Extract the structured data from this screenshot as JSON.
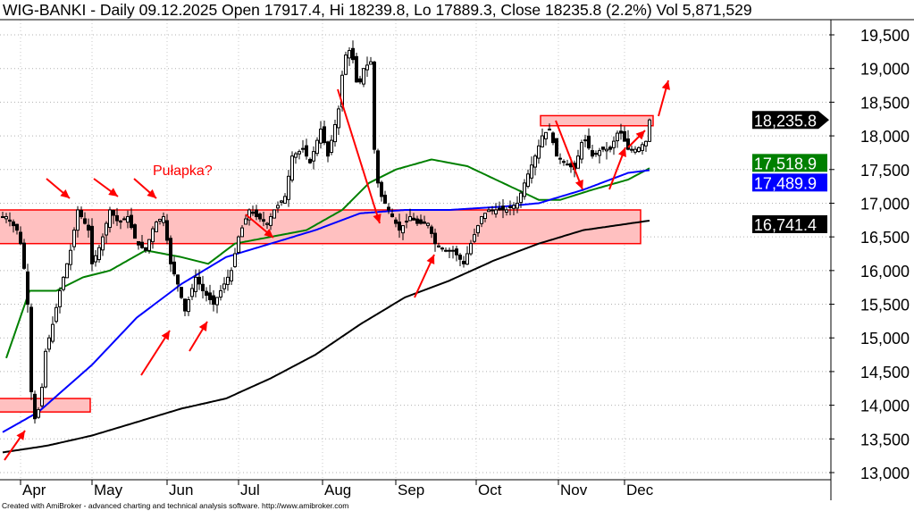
{
  "header": {
    "title": "WIG-BANKI - Daily 09.12.2025 Open 17917.4, Hi 18239.8, Lo 17889.3, Close 18235.8 (2.2%) Vol 5,871,529"
  },
  "footer": {
    "text": "Created with AmiBroker - advanced charting and technical analysis software. http://www.amibroker.com"
  },
  "chart_data": {
    "type": "candlestick",
    "title": "WIG-BANKI - Daily",
    "ylim": [
      12800,
      19800
    ],
    "y_ticks": [
      13000,
      13500,
      14000,
      14500,
      15000,
      15500,
      16000,
      16500,
      17000,
      17500,
      18000,
      18500,
      19000,
      19500
    ],
    "y_tick_labels": [
      "13,000",
      "13,500",
      "14,000",
      "14,500",
      "15,000",
      "15,500",
      "16,000",
      "16,500",
      "17,000",
      "17,500",
      "18,000",
      "18,500",
      "19,000",
      "19,500"
    ],
    "x_months": [
      {
        "label": "Apr",
        "day": 5
      },
      {
        "label": "May",
        "day": 25
      },
      {
        "label": "Jun",
        "day": 46
      },
      {
        "label": "Jul",
        "day": 66
      },
      {
        "label": "Aug",
        "day": 89.5
      },
      {
        "label": "Sep",
        "day": 110
      },
      {
        "label": "Oct",
        "day": 132.5
      },
      {
        "label": "Nov",
        "day": 155.5
      },
      {
        "label": "Dec",
        "day": 174
      }
    ],
    "price_anchors": [
      [
        0,
        16800
      ],
      [
        1,
        16800
      ],
      [
        4,
        16600
      ],
      [
        5.5,
        16300
      ],
      [
        7,
        15500
      ],
      [
        8,
        14200
      ],
      [
        9,
        13800
      ],
      [
        10.5,
        14000
      ],
      [
        12,
        14800
      ],
      [
        14,
        15200
      ],
      [
        16,
        15700
      ],
      [
        19,
        16300
      ],
      [
        21,
        16900
      ],
      [
        24,
        16600
      ],
      [
        25,
        16100
      ],
      [
        27.5,
        16400
      ],
      [
        30,
        16900
      ],
      [
        32.5,
        16700
      ],
      [
        35,
        16800
      ],
      [
        37.5,
        16400
      ],
      [
        40,
        16300
      ],
      [
        42.5,
        16700
      ],
      [
        45,
        16800
      ],
      [
        47,
        16100
      ],
      [
        49,
        15800
      ],
      [
        51,
        15400
      ],
      [
        54,
        15900
      ],
      [
        56,
        15700
      ],
      [
        59,
        15500
      ],
      [
        61,
        15700
      ],
      [
        64,
        16000
      ],
      [
        66,
        16500
      ],
      [
        69,
        16900
      ],
      [
        71,
        16800
      ],
      [
        74,
        16700
      ],
      [
        76,
        16900
      ],
      [
        79,
        17100
      ],
      [
        81,
        17700
      ],
      [
        84,
        17800
      ],
      [
        86,
        17600
      ],
      [
        89,
        18100
      ],
      [
        91,
        17700
      ],
      [
        94,
        18400
      ],
      [
        95,
        18900
      ],
      [
        96,
        19200
      ],
      [
        97.5,
        19300
      ],
      [
        99,
        18800
      ],
      [
        100,
        18800
      ],
      [
        101,
        19000
      ],
      [
        103,
        19100
      ],
      [
        104,
        17800
      ],
      [
        105,
        17300
      ],
      [
        106,
        17100
      ],
      [
        109,
        16800
      ],
      [
        111,
        16600
      ],
      [
        114,
        16800
      ],
      [
        116,
        16700
      ],
      [
        119,
        16700
      ],
      [
        121,
        16400
      ],
      [
        124,
        16300
      ],
      [
        126,
        16300
      ],
      [
        129,
        16100
      ],
      [
        131,
        16400
      ],
      [
        134,
        16800
      ],
      [
        136,
        16900
      ],
      [
        139,
        16900
      ],
      [
        141,
        16900
      ],
      [
        144,
        17000
      ],
      [
        146,
        17300
      ],
      [
        149,
        17700
      ],
      [
        151,
        18000
      ],
      [
        153,
        18100
      ],
      [
        155,
        17700
      ],
      [
        157.5,
        17600
      ],
      [
        160,
        17500
      ],
      [
        162.5,
        18000
      ],
      [
        165,
        17700
      ],
      [
        167.5,
        17800
      ],
      [
        170,
        17800
      ],
      [
        172.5,
        18100
      ],
      [
        175,
        17800
      ],
      [
        177.5,
        17800
      ],
      [
        180,
        17917.4
      ],
      [
        181,
        18235.8
      ]
    ],
    "series": [
      {
        "name": "MA green",
        "color": "#008000",
        "last": "17,518.9",
        "points": [
          [
            1,
            14700
          ],
          [
            7.5,
            15700
          ],
          [
            15,
            15700
          ],
          [
            22.5,
            15900
          ],
          [
            30,
            16000
          ],
          [
            40,
            16300
          ],
          [
            50,
            16200
          ],
          [
            57.5,
            16100
          ],
          [
            65,
            16400
          ],
          [
            75,
            16500
          ],
          [
            85,
            16600
          ],
          [
            95,
            16900
          ],
          [
            102.5,
            17300
          ],
          [
            110,
            17500
          ],
          [
            120,
            17650
          ],
          [
            130,
            17550
          ],
          [
            140,
            17300
          ],
          [
            150,
            17050
          ],
          [
            156,
            17050
          ],
          [
            165,
            17200
          ],
          [
            175,
            17350
          ],
          [
            181,
            17518.9
          ]
        ]
      },
      {
        "name": "MA blue",
        "color": "#0000ff",
        "last": "17,489.9",
        "points": [
          [
            0,
            13600
          ],
          [
            10,
            13900
          ],
          [
            25,
            14600
          ],
          [
            37.5,
            15300
          ],
          [
            50,
            15800
          ],
          [
            62.5,
            16200
          ],
          [
            75,
            16400
          ],
          [
            87.5,
            16600
          ],
          [
            100,
            16850
          ],
          [
            112.5,
            16900
          ],
          [
            125,
            16900
          ],
          [
            140,
            16950
          ],
          [
            150,
            17000
          ],
          [
            162.5,
            17200
          ],
          [
            175,
            17450
          ],
          [
            181,
            17489.9
          ]
        ]
      },
      {
        "name": "MA black",
        "color": "#000000",
        "last": "16,741.4",
        "points": [
          [
            0,
            13300
          ],
          [
            12.5,
            13400
          ],
          [
            25,
            13550
          ],
          [
            37.5,
            13750
          ],
          [
            50,
            13950
          ],
          [
            62.5,
            14100
          ],
          [
            75,
            14400
          ],
          [
            87.5,
            14750
          ],
          [
            100,
            15200
          ],
          [
            112.5,
            15600
          ],
          [
            125,
            15850
          ],
          [
            137.5,
            16150
          ],
          [
            150,
            16400
          ],
          [
            162.5,
            16600
          ],
          [
            181,
            16741.4
          ]
        ]
      }
    ],
    "last_close_label": "18,235.8",
    "zones": [
      {
        "from_day": -1,
        "to_day": 178.5,
        "low": 16400,
        "high": 16900
      },
      {
        "from_day": -1,
        "to_day": 24.5,
        "low": 13900,
        "high": 14100
      },
      {
        "from_day": 150.5,
        "to_day": 182,
        "low": 18150,
        "high": 18300
      }
    ],
    "annotations": [
      {
        "text": "Pułapka?",
        "color": "#ff0000"
      }
    ],
    "colors": {
      "zone_fill": "#ffc0c0",
      "zone_stroke": "#ff0000",
      "arrow": "#ff0000"
    }
  }
}
